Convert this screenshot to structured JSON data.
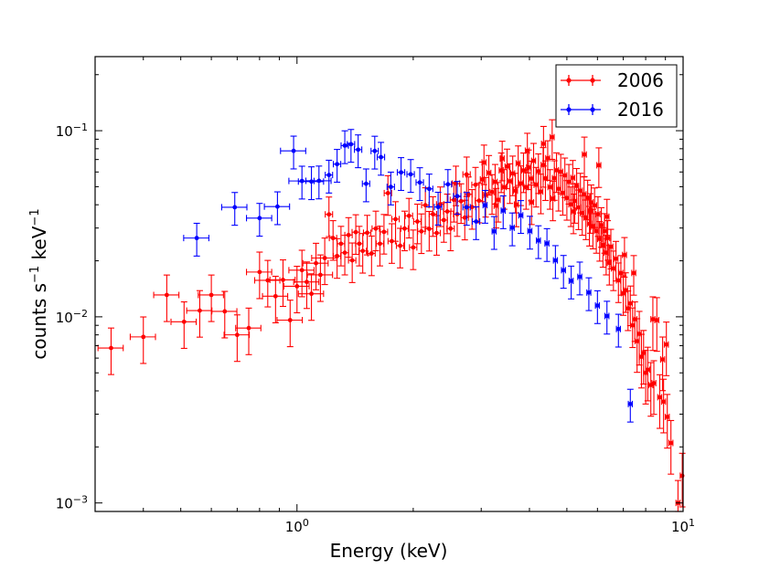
{
  "chart_data": {
    "type": "scatter",
    "title": "",
    "xlabel": "Energy (keV)",
    "ylabel": "counts s",
    "ylabel_sup1": "−1",
    "ylabel_mid": " keV",
    "ylabel_sup2": "−1",
    "xscale": "log",
    "yscale": "log",
    "xlim": [
      0.3,
      10
    ],
    "ylim": [
      0.0009,
      0.25
    ],
    "x_ticks": [
      {
        "base": "10",
        "exp": "0",
        "value": 1
      },
      {
        "base": "10",
        "exp": "1",
        "value": 10
      }
    ],
    "y_ticks": [
      {
        "base": "10",
        "exp": "−3",
        "value": 0.001
      },
      {
        "base": "10",
        "exp": "−2",
        "value": 0.01
      },
      {
        "base": "10",
        "exp": "−1",
        "value": 0.1
      }
    ],
    "legend_position": "top-right",
    "series": [
      {
        "name": "2006",
        "color": "#ff0000",
        "points": [
          [
            0.33,
            0.0068
          ],
          [
            0.4,
            0.0078
          ],
          [
            0.46,
            0.0131
          ],
          [
            0.51,
            0.0094
          ],
          [
            0.56,
            0.0108
          ],
          [
            0.6,
            0.0131
          ],
          [
            0.65,
            0.0107
          ],
          [
            0.7,
            0.008
          ],
          [
            0.75,
            0.0087
          ],
          [
            0.8,
            0.0174
          ],
          [
            0.84,
            0.0157
          ],
          [
            0.88,
            0.0129
          ],
          [
            0.92,
            0.0158
          ],
          [
            0.96,
            0.0096
          ],
          [
            1.0,
            0.0146
          ],
          [
            1.03,
            0.0178
          ],
          [
            1.06,
            0.0154
          ],
          [
            1.09,
            0.0133
          ],
          [
            1.12,
            0.0194
          ],
          [
            1.15,
            0.0168
          ],
          [
            1.18,
            0.0207
          ],
          [
            1.21,
            0.0355
          ],
          [
            1.24,
            0.0265
          ],
          [
            1.27,
            0.0212
          ],
          [
            1.3,
            0.0247
          ],
          [
            1.33,
            0.0221
          ],
          [
            1.36,
            0.0275
          ],
          [
            1.39,
            0.0201
          ],
          [
            1.42,
            0.0285
          ],
          [
            1.45,
            0.0247
          ],
          [
            1.48,
            0.0226
          ],
          [
            1.52,
            0.0283
          ],
          [
            1.56,
            0.0219
          ],
          [
            1.6,
            0.0298
          ],
          [
            1.64,
            0.0247
          ],
          [
            1.68,
            0.0286
          ],
          [
            1.72,
            0.0462
          ],
          [
            1.76,
            0.0255
          ],
          [
            1.8,
            0.0335
          ],
          [
            1.85,
            0.0241
          ],
          [
            1.9,
            0.0298
          ],
          [
            1.95,
            0.0349
          ],
          [
            2.0,
            0.0236
          ],
          [
            2.05,
            0.0325
          ],
          [
            2.1,
            0.0288
          ],
          [
            2.15,
            0.0398
          ],
          [
            2.2,
            0.0297
          ],
          [
            2.25,
            0.0356
          ],
          [
            2.3,
            0.0282
          ],
          [
            2.35,
            0.0402
          ],
          [
            2.4,
            0.0331
          ],
          [
            2.45,
            0.0368
          ],
          [
            2.5,
            0.0298
          ],
          [
            2.55,
            0.0425
          ],
          [
            2.6,
            0.0356
          ],
          [
            2.66,
            0.0418
          ],
          [
            2.72,
            0.0341
          ],
          [
            2.78,
            0.0455
          ],
          [
            2.84,
            0.0389
          ],
          [
            2.9,
            0.0512
          ],
          [
            2.96,
            0.0421
          ],
          [
            3.02,
            0.0547
          ],
          [
            3.08,
            0.0452
          ],
          [
            3.14,
            0.0593
          ],
          [
            3.2,
            0.0468
          ],
          [
            3.26,
            0.0531
          ],
          [
            3.32,
            0.0425
          ],
          [
            3.38,
            0.0612
          ],
          [
            3.44,
            0.0498
          ],
          [
            3.5,
            0.0642
          ],
          [
            3.56,
            0.0535
          ],
          [
            3.62,
            0.0589
          ],
          [
            3.68,
            0.0476
          ],
          [
            3.74,
            0.0668
          ],
          [
            3.8,
            0.0521
          ],
          [
            3.86,
            0.0612
          ],
          [
            3.92,
            0.0498
          ],
          [
            3.98,
            0.0635
          ],
          [
            4.04,
            0.0553
          ],
          [
            4.1,
            0.0689
          ],
          [
            4.16,
            0.0512
          ],
          [
            4.22,
            0.0605
          ],
          [
            4.28,
            0.0471
          ],
          [
            4.34,
            0.0654
          ],
          [
            4.4,
            0.0555
          ],
          [
            4.46,
            0.0712
          ],
          [
            4.52,
            0.0498
          ],
          [
            4.58,
            0.0923
          ],
          [
            4.64,
            0.0556
          ],
          [
            4.7,
            0.0613
          ],
          [
            4.76,
            0.0487
          ],
          [
            4.82,
            0.0602
          ],
          [
            4.88,
            0.0463
          ],
          [
            4.94,
            0.0575
          ],
          [
            5.0,
            0.0435
          ],
          [
            5.06,
            0.0531
          ],
          [
            5.12,
            0.0402
          ],
          [
            5.18,
            0.0558
          ],
          [
            5.24,
            0.0419
          ],
          [
            5.3,
            0.0505
          ],
          [
            5.36,
            0.0387
          ],
          [
            5.42,
            0.0476
          ],
          [
            5.48,
            0.0361
          ],
          [
            5.54,
            0.0455
          ],
          [
            5.6,
            0.0342
          ],
          [
            5.66,
            0.0437
          ],
          [
            5.72,
            0.0316
          ],
          [
            5.78,
            0.0412
          ],
          [
            5.84,
            0.0305
          ],
          [
            5.9,
            0.0397
          ],
          [
            5.96,
            0.0289
          ],
          [
            6.02,
            0.0356
          ],
          [
            6.08,
            0.0262
          ],
          [
            6.14,
            0.0311
          ],
          [
            6.2,
            0.0243
          ],
          [
            6.26,
            0.0289
          ],
          [
            6.32,
            0.0221
          ],
          [
            6.38,
            0.0265
          ],
          [
            6.44,
            0.0195
          ],
          [
            6.5,
            0.0238
          ],
          [
            6.6,
            0.0182
          ],
          [
            6.7,
            0.0205
          ],
          [
            6.8,
            0.0157
          ],
          [
            6.9,
            0.0172
          ],
          [
            7.0,
            0.0134
          ],
          [
            7.1,
            0.0139
          ],
          [
            7.2,
            0.0111
          ],
          [
            7.3,
            0.0118
          ],
          [
            7.4,
            0.009
          ],
          [
            7.5,
            0.0097
          ],
          [
            7.6,
            0.0074
          ],
          [
            7.7,
            0.0081
          ],
          [
            7.8,
            0.0061
          ],
          [
            7.9,
            0.0064
          ],
          [
            8.0,
            0.005
          ],
          [
            8.1,
            0.0052
          ],
          [
            8.25,
            0.0043
          ],
          [
            8.4,
            0.0044
          ],
          [
            8.55,
            0.0096
          ],
          [
            8.7,
            0.0037
          ],
          [
            8.9,
            0.0035
          ],
          [
            9.1,
            0.0029
          ],
          [
            9.3,
            0.0021
          ],
          [
            9.7,
            0.001
          ],
          [
            9.95,
            0.0014
          ],
          [
            3.05,
            0.0675
          ],
          [
            3.4,
            0.0708
          ],
          [
            3.95,
            0.0781
          ],
          [
            4.35,
            0.085
          ],
          [
            5.55,
            0.0745
          ],
          [
            6.05,
            0.0652
          ],
          [
            2.58,
            0.052
          ],
          [
            2.75,
            0.0582
          ],
          [
            3.28,
            0.0395
          ],
          [
            3.7,
            0.0401
          ],
          [
            4.05,
            0.0412
          ],
          [
            4.6,
            0.0432
          ],
          [
            5.2,
            0.0368
          ],
          [
            5.75,
            0.037
          ],
          [
            6.35,
            0.0345
          ],
          [
            7.05,
            0.0215
          ],
          [
            7.45,
            0.0172
          ],
          [
            8.35,
            0.0097
          ],
          [
            8.85,
            0.0059
          ],
          [
            9.05,
            0.0071
          ]
        ]
      },
      {
        "name": "2016",
        "color": "#0000ff",
        "points": [
          [
            0.55,
            0.0265
          ],
          [
            0.69,
            0.0388
          ],
          [
            0.8,
            0.0339
          ],
          [
            0.89,
            0.0391
          ],
          [
            0.98,
            0.0779
          ],
          [
            1.03,
            0.0537
          ],
          [
            1.09,
            0.0533
          ],
          [
            1.14,
            0.0538
          ],
          [
            1.21,
            0.0578
          ],
          [
            1.27,
            0.0661
          ],
          [
            1.33,
            0.0832
          ],
          [
            1.38,
            0.0846
          ],
          [
            1.44,
            0.0791
          ],
          [
            1.51,
            0.0519
          ],
          [
            1.59,
            0.0778
          ],
          [
            1.65,
            0.0721
          ],
          [
            1.75,
            0.0499
          ],
          [
            1.86,
            0.0597
          ],
          [
            1.97,
            0.0583
          ],
          [
            2.08,
            0.0527
          ],
          [
            2.2,
            0.0487
          ],
          [
            2.32,
            0.0389
          ],
          [
            2.46,
            0.0515
          ],
          [
            2.6,
            0.0445
          ],
          [
            2.75,
            0.0388
          ],
          [
            2.91,
            0.0325
          ],
          [
            3.07,
            0.0398
          ],
          [
            3.24,
            0.0288
          ],
          [
            3.42,
            0.0372
          ],
          [
            3.61,
            0.0301
          ],
          [
            3.8,
            0.0351
          ],
          [
            4.01,
            0.0289
          ],
          [
            4.22,
            0.0257
          ],
          [
            4.44,
            0.0248
          ],
          [
            4.67,
            0.0201
          ],
          [
            4.9,
            0.0178
          ],
          [
            5.13,
            0.0156
          ],
          [
            5.4,
            0.0164
          ],
          [
            5.7,
            0.0135
          ],
          [
            6.0,
            0.0115
          ],
          [
            6.35,
            0.0101
          ],
          [
            6.8,
            0.0086
          ],
          [
            7.3,
            0.0034
          ]
        ]
      }
    ]
  }
}
